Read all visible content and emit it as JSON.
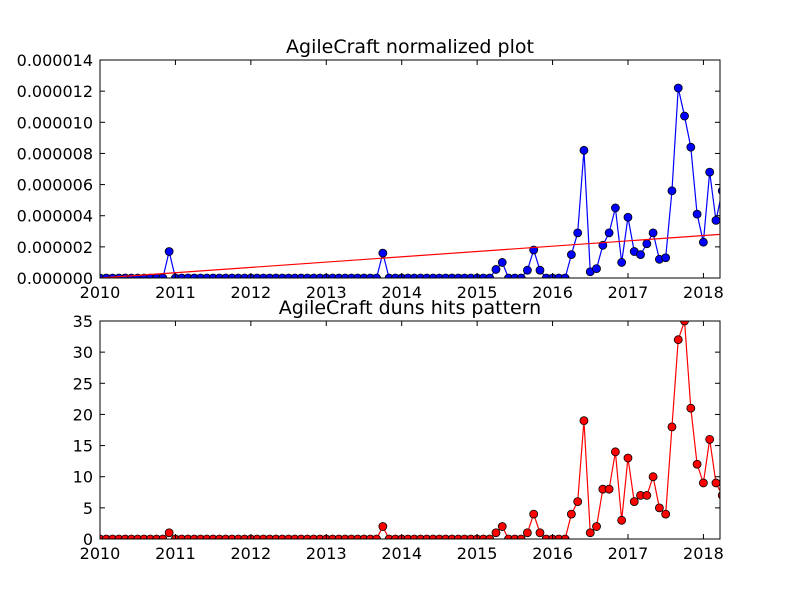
{
  "chart_data": [
    {
      "type": "line",
      "title": "AgileCraft normalized plot",
      "xlabel": "",
      "ylabel": "",
      "xlim": [
        2010.0,
        2018.22
      ],
      "ylim": [
        0,
        1.4e-05
      ],
      "x_ticks": [
        "2010",
        "2011",
        "2012",
        "2013",
        "2014",
        "2015",
        "2016",
        "2017",
        "2018"
      ],
      "y_ticks": [
        "0.000000",
        "0.000002",
        "0.000004",
        "0.000006",
        "0.000008",
        "0.000010",
        "0.000012",
        "0.000014"
      ],
      "grid": false,
      "series": [
        {
          "color": "#0000ff",
          "marker": "circle",
          "x_start": 2010.0,
          "x_step": 0.08333,
          "values": [
            0,
            0,
            0,
            0,
            0,
            0,
            0,
            0,
            0,
            0,
            0,
            1.7e-06,
            0,
            0,
            0,
            0,
            0,
            0,
            0,
            0,
            0,
            0,
            0,
            0,
            0,
            0,
            0,
            0,
            0,
            0,
            0,
            0,
            0,
            0,
            0,
            0,
            0,
            0,
            0,
            0,
            0,
            0,
            0,
            0,
            0,
            1.6e-06,
            0,
            0,
            0,
            0,
            0,
            0,
            0,
            0,
            0,
            0,
            0,
            0,
            0,
            0,
            0,
            0,
            0,
            5.5e-07,
            1e-06,
            0,
            0,
            0,
            5e-07,
            1.8e-06,
            5e-07,
            0,
            0,
            0,
            0,
            1.5e-06,
            2.9e-06,
            8.2e-06,
            4e-07,
            6e-07,
            2.1e-06,
            2.9e-06,
            4.5e-06,
            1e-06,
            3.9e-06,
            1.7e-06,
            1.5e-06,
            2.2e-06,
            2.9e-06,
            1.2e-06,
            1.3e-06,
            5.6e-06,
            1.22e-05,
            1.04e-05,
            8.4e-06,
            4.1e-06,
            2.3e-06,
            6.8e-06,
            3.7e-06,
            5.6e-06
          ]
        },
        {
          "type": "trend",
          "color": "#ff0000",
          "x": [
            2010.0,
            2018.22
          ],
          "y": [
            0,
            2.8e-06
          ]
        }
      ]
    },
    {
      "type": "line",
      "title": "AgileCraft duns hits pattern",
      "xlabel": "",
      "ylabel": "",
      "xlim": [
        2010.0,
        2018.22
      ],
      "ylim": [
        0,
        35
      ],
      "x_ticks": [
        "2010",
        "2011",
        "2012",
        "2013",
        "2014",
        "2015",
        "2016",
        "2017",
        "2018"
      ],
      "y_ticks": [
        "0",
        "5",
        "10",
        "15",
        "20",
        "25",
        "30",
        "35"
      ],
      "grid": false,
      "series": [
        {
          "color": "#ff0000",
          "marker": "circle",
          "x_start": 2010.0,
          "x_step": 0.08333,
          "values": [
            0,
            0,
            0,
            0,
            0,
            0,
            0,
            0,
            0,
            0,
            0,
            1,
            0,
            0,
            0,
            0,
            0,
            0,
            0,
            0,
            0,
            0,
            0,
            0,
            0,
            0,
            0,
            0,
            0,
            0,
            0,
            0,
            0,
            0,
            0,
            0,
            0,
            0,
            0,
            0,
            0,
            0,
            0,
            0,
            0,
            2,
            0,
            0,
            0,
            0,
            0,
            0,
            0,
            0,
            0,
            0,
            0,
            0,
            0,
            0,
            0,
            0,
            0,
            1,
            2,
            0,
            0,
            0,
            1,
            4,
            1,
            0,
            0,
            0,
            0,
            4,
            6,
            19,
            1,
            2,
            8,
            8,
            14,
            3,
            13,
            6,
            7,
            7,
            10,
            5,
            4,
            18,
            32,
            35,
            21,
            12,
            9,
            16,
            9,
            7
          ]
        }
      ]
    }
  ]
}
